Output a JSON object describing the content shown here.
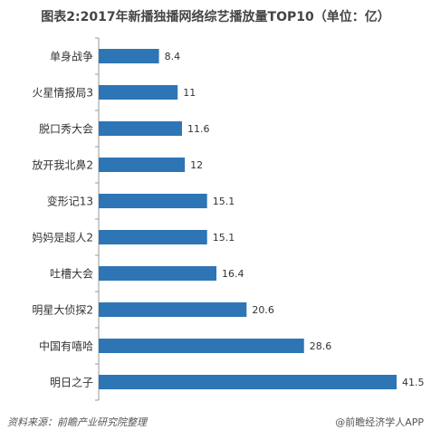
{
  "title": "图表2:2017年新播独播网络综艺播放量TOP10（单位：亿）",
  "footer": {
    "source": "资料来源：前瞻产业研究院整理",
    "brand": "@前瞻经济学人APP"
  },
  "colors": {
    "bar": "#2E75B6",
    "axis": "#999999",
    "label": "#333333"
  },
  "chart_data": {
    "type": "bar",
    "orientation": "horizontal",
    "title": "图表2:2017年新播独播网络综艺播放量TOP10（单位：亿）",
    "xlabel": "",
    "ylabel": "",
    "xlim": [
      0,
      42
    ],
    "grid": false,
    "categories": [
      "单身战争",
      "火星情报局3",
      "脱口秀大会",
      "放开我北鼻2",
      "变形记13",
      "妈妈是超人2",
      "吐槽大会",
      "明星大侦探2",
      "中国有嘻哈",
      "明日之子"
    ],
    "values": [
      8.4,
      11,
      11.6,
      12,
      15.1,
      15.1,
      16.4,
      20.6,
      28.6,
      41.5
    ],
    "value_labels": [
      "8.4",
      "11",
      "11.6",
      "12",
      "15.1",
      "15.1",
      "16.4",
      "20.6",
      "28.6",
      "41.5"
    ]
  }
}
